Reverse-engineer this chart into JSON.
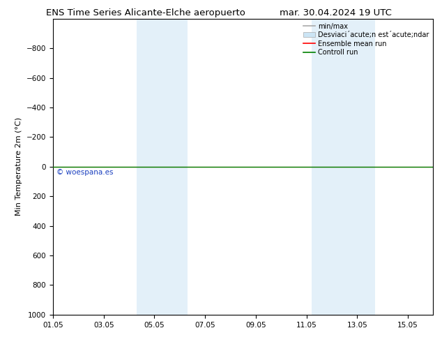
{
  "title_left": "ENS Time Series Alicante-Elche aeropuerto",
  "title_right": "mar. 30.04.2024 19 UTC",
  "ylabel": "Min Temperature 2m (°C)",
  "ylim_bottom": 1000,
  "ylim_top": -1000,
  "yticks": [
    -800,
    -600,
    -400,
    -200,
    0,
    200,
    400,
    600,
    800,
    1000
  ],
  "xtick_labels": [
    "01.05",
    "03.05",
    "05.05",
    "07.05",
    "09.05",
    "11.05",
    "13.05",
    "15.05"
  ],
  "xtick_positions": [
    0,
    2,
    4,
    6,
    8,
    10,
    12,
    14
  ],
  "xlim": [
    0,
    15
  ],
  "shaded_regions": [
    {
      "x_start": 3.3,
      "x_end": 5.3
    },
    {
      "x_start": 10.2,
      "x_end": 12.7
    }
  ],
  "hline_y": 0,
  "hline_color_ensemble": "#ff0000",
  "hline_color_control": "#008000",
  "watermark_text": "© woespana.es",
  "watermark_color": "#1a3fbf",
  "bg_color": "#ffffff",
  "shade_color": "#cce5f5",
  "shade_alpha": 0.55,
  "title_fontsize": 9.5,
  "ylabel_fontsize": 8,
  "tick_fontsize": 7.5,
  "legend_fontsize": 7,
  "legend_line_color": "#aaaaaa",
  "legend_shade_color": "#cce5f5",
  "legend_ensemble_color": "#ff0000",
  "legend_control_color": "#008000"
}
